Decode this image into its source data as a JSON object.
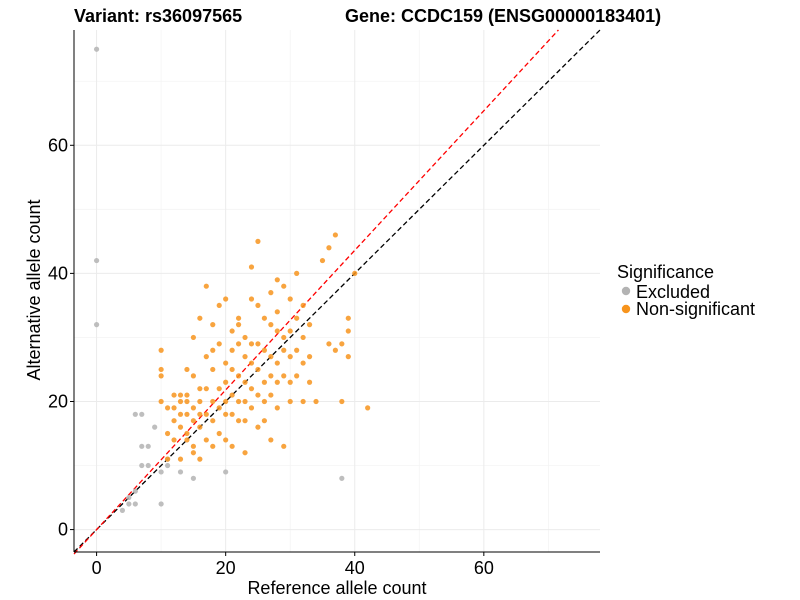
{
  "chart_data": {
    "type": "scatter",
    "title_left": "Variant: rs36097565",
    "title_right": "Gene: CCDC159 (ENSG00000183401)",
    "xlabel": "Reference allele count",
    "ylabel": "Alternative allele count",
    "xlim": [
      -3.5,
      78
    ],
    "ylim": [
      -3.5,
      78
    ],
    "xticks": [
      0,
      20,
      40,
      60
    ],
    "yticks": [
      0,
      20,
      40,
      60
    ],
    "grid": true,
    "legend": {
      "title": "Significance",
      "position": "right",
      "entries": [
        {
          "label": "Excluded",
          "color": "#b3b3b3"
        },
        {
          "label": "Non-significant",
          "color": "#f7941d"
        }
      ]
    },
    "reference_lines": [
      {
        "slope": 1,
        "intercept": 0,
        "color": "#000000",
        "style": "dashed"
      },
      {
        "slope": 1.09,
        "intercept": 0,
        "color": "#ff0000",
        "style": "dashed"
      }
    ],
    "series": [
      {
        "name": "Excluded",
        "color": "#b3b3b3",
        "points": [
          [
            0,
            75
          ],
          [
            0,
            42
          ],
          [
            0,
            32
          ],
          [
            4,
            3
          ],
          [
            5,
            4
          ],
          [
            5,
            5
          ],
          [
            6,
            4
          ],
          [
            6,
            6
          ],
          [
            6,
            18
          ],
          [
            7,
            18
          ],
          [
            7,
            13
          ],
          [
            7,
            10
          ],
          [
            8,
            13
          ],
          [
            8,
            10
          ],
          [
            9,
            16
          ],
          [
            10,
            4
          ],
          [
            10,
            9
          ],
          [
            11,
            10
          ],
          [
            11,
            11
          ],
          [
            13,
            9
          ],
          [
            15,
            8
          ],
          [
            20,
            9
          ],
          [
            38,
            8
          ]
        ]
      },
      {
        "name": "Non-significant",
        "color": "#f7941d",
        "points": [
          [
            10,
            28
          ],
          [
            10,
            25
          ],
          [
            10,
            24
          ],
          [
            10,
            20
          ],
          [
            11,
            19
          ],
          [
            11,
            15
          ],
          [
            11,
            11
          ],
          [
            12,
            21
          ],
          [
            12,
            19
          ],
          [
            12,
            17
          ],
          [
            12,
            14
          ],
          [
            13,
            20
          ],
          [
            13,
            18
          ],
          [
            13,
            16
          ],
          [
            13,
            11
          ],
          [
            13,
            21
          ],
          [
            14,
            21
          ],
          [
            14,
            20
          ],
          [
            14,
            18
          ],
          [
            14,
            15
          ],
          [
            14,
            14
          ],
          [
            14,
            25
          ],
          [
            15,
            24
          ],
          [
            15,
            19
          ],
          [
            15,
            17
          ],
          [
            15,
            13
          ],
          [
            15,
            12
          ],
          [
            15,
            30
          ],
          [
            16,
            22
          ],
          [
            16,
            20
          ],
          [
            16,
            18
          ],
          [
            16,
            16
          ],
          [
            16,
            11
          ],
          [
            16,
            33
          ],
          [
            17,
            38
          ],
          [
            17,
            27
          ],
          [
            17,
            22
          ],
          [
            17,
            18
          ],
          [
            17,
            14
          ],
          [
            18,
            32
          ],
          [
            18,
            28
          ],
          [
            18,
            25
          ],
          [
            18,
            20
          ],
          [
            18,
            17
          ],
          [
            18,
            13
          ],
          [
            19,
            35
          ],
          [
            19,
            29
          ],
          [
            19,
            22
          ],
          [
            19,
            19
          ],
          [
            19,
            15
          ],
          [
            20,
            26
          ],
          [
            20,
            23
          ],
          [
            20,
            20
          ],
          [
            20,
            18
          ],
          [
            20,
            14
          ],
          [
            20,
            36
          ],
          [
            21,
            31
          ],
          [
            21,
            28
          ],
          [
            21,
            25
          ],
          [
            21,
            21
          ],
          [
            21,
            18
          ],
          [
            21,
            13
          ],
          [
            22,
            33
          ],
          [
            22,
            29
          ],
          [
            22,
            24
          ],
          [
            22,
            20
          ],
          [
            22,
            17
          ],
          [
            22,
            32
          ],
          [
            23,
            30
          ],
          [
            23,
            27
          ],
          [
            23,
            23
          ],
          [
            23,
            20
          ],
          [
            23,
            17
          ],
          [
            23,
            12
          ],
          [
            24,
            41
          ],
          [
            24,
            36
          ],
          [
            24,
            29
          ],
          [
            24,
            26
          ],
          [
            24,
            22
          ],
          [
            24,
            19
          ],
          [
            25,
            45
          ],
          [
            25,
            35
          ],
          [
            25,
            29
          ],
          [
            25,
            25
          ],
          [
            25,
            21
          ],
          [
            25,
            16
          ],
          [
            26,
            33
          ],
          [
            26,
            28
          ],
          [
            26,
            23
          ],
          [
            26,
            20
          ],
          [
            26,
            17
          ],
          [
            27,
            37
          ],
          [
            27,
            32
          ],
          [
            27,
            27
          ],
          [
            27,
            24
          ],
          [
            27,
            21
          ],
          [
            27,
            14
          ],
          [
            28,
            39
          ],
          [
            28,
            34
          ],
          [
            28,
            31
          ],
          [
            28,
            26
          ],
          [
            28,
            23
          ],
          [
            28,
            19
          ],
          [
            29,
            38
          ],
          [
            29,
            30
          ],
          [
            29,
            28
          ],
          [
            29,
            24
          ],
          [
            29,
            13
          ],
          [
            30,
            36
          ],
          [
            30,
            31
          ],
          [
            30,
            27
          ],
          [
            30,
            23
          ],
          [
            30,
            20
          ],
          [
            31,
            40
          ],
          [
            31,
            33
          ],
          [
            31,
            28
          ],
          [
            31,
            24
          ],
          [
            32,
            35
          ],
          [
            32,
            30
          ],
          [
            32,
            26
          ],
          [
            32,
            20
          ],
          [
            33,
            32
          ],
          [
            33,
            27
          ],
          [
            33,
            23
          ],
          [
            34,
            20
          ],
          [
            35,
            42
          ],
          [
            36,
            44
          ],
          [
            36,
            29
          ],
          [
            37,
            46
          ],
          [
            37,
            28
          ],
          [
            38,
            29
          ],
          [
            38,
            20
          ],
          [
            39,
            31
          ],
          [
            39,
            27
          ],
          [
            39,
            33
          ],
          [
            40,
            40
          ],
          [
            42,
            19
          ]
        ]
      }
    ]
  }
}
